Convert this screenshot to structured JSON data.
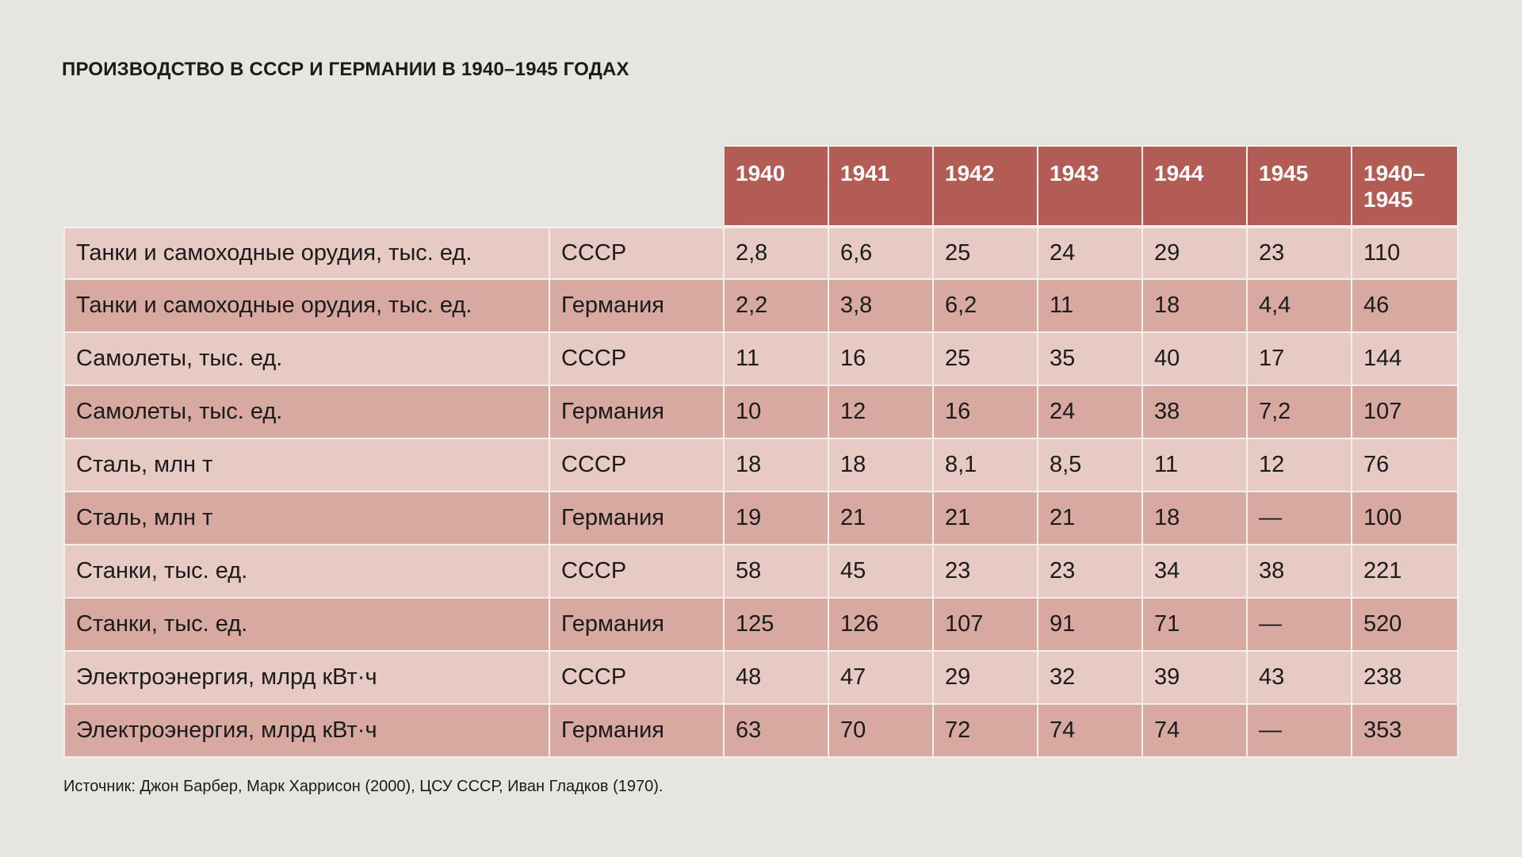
{
  "title": "ПРОИЗВОДСТВО В СССР И ГЕРМАНИИ В 1940–1945 ГОДАХ",
  "table": {
    "headers": [
      "1940",
      "1941",
      "1942",
      "1943",
      "1944",
      "1945",
      "1940–1945"
    ],
    "rows": [
      {
        "indicator": "Танки и самоходные орудия, тыс. ед.",
        "country": "СССР",
        "values": [
          "2,8",
          "6,6",
          "25",
          "24",
          "29",
          "23",
          "110"
        ]
      },
      {
        "indicator": "Танки и самоходные орудия, тыс. ед.",
        "country": "Германия",
        "values": [
          "2,2",
          "3,8",
          "6,2",
          "11",
          "18",
          "4,4",
          "46"
        ]
      },
      {
        "indicator": "Самолеты, тыс. ед.",
        "country": "СССР",
        "values": [
          "11",
          "16",
          "25",
          "35",
          "40",
          "17",
          "144"
        ]
      },
      {
        "indicator": "Самолеты, тыс. ед.",
        "country": "Германия",
        "values": [
          "10",
          "12",
          "16",
          "24",
          "38",
          "7,2",
          "107"
        ]
      },
      {
        "indicator": "Сталь, млн т",
        "country": "СССР",
        "values": [
          "18",
          "18",
          "8,1",
          "8,5",
          "11",
          "12",
          "76"
        ]
      },
      {
        "indicator": "Сталь, млн т",
        "country": "Германия",
        "values": [
          "19",
          "21",
          "21",
          "21",
          "18",
          "—",
          "100"
        ]
      },
      {
        "indicator": "Станки, тыс. ед.",
        "country": "СССР",
        "values": [
          "58",
          "45",
          "23",
          "23",
          "34",
          "38",
          "221"
        ]
      },
      {
        "indicator": "Станки, тыс. ед.",
        "country": "Германия",
        "values": [
          "125",
          "126",
          "107",
          "91",
          "71",
          "—",
          "520"
        ]
      },
      {
        "indicator": "Электроэнергия, млрд кВт·ч",
        "country": "СССР",
        "values": [
          "48",
          "47",
          "29",
          "32",
          "39",
          "43",
          "238"
        ]
      },
      {
        "indicator": "Электроэнергия, млрд кВт·ч",
        "country": "Германия",
        "values": [
          "63",
          "70",
          "72",
          "74",
          "74",
          "—",
          "353"
        ]
      }
    ]
  },
  "source": "Источник: Джон Барбер, Марк Харрисон (2000), ЦСУ СССР, Иван Гладков (1970).",
  "colors": {
    "background": "#e6e5df",
    "header": "#b35c55",
    "row_light": "#e8cac4",
    "row_dark": "#d8a9a0",
    "grid": "#f3efec"
  }
}
